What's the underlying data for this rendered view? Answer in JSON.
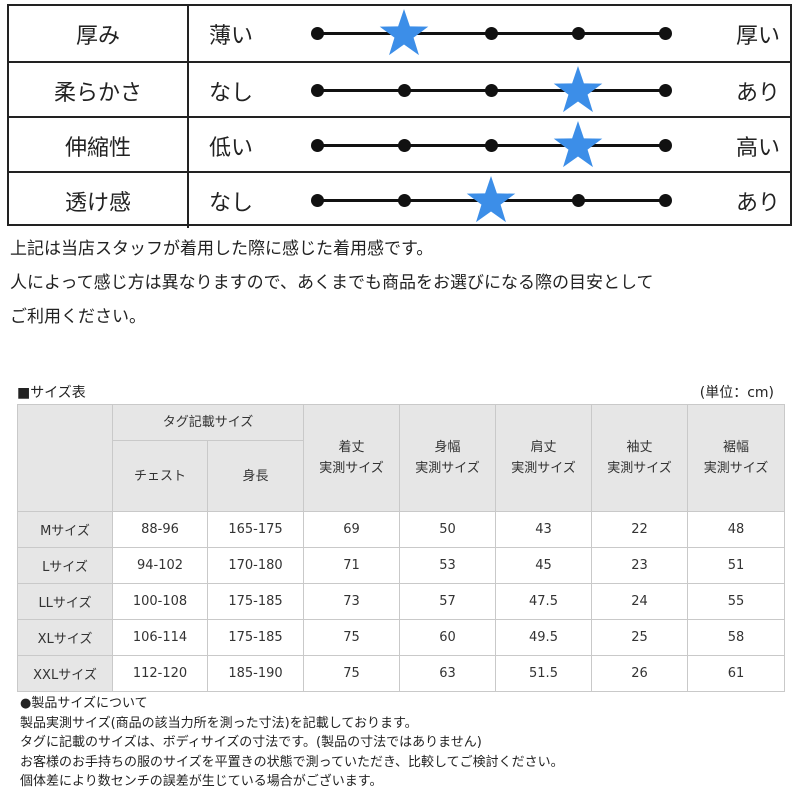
{
  "feel": [
    {
      "label": "厚み",
      "left": "薄い",
      "right": "厚い",
      "position": 2,
      "points": 5
    },
    {
      "label": "柔らかさ",
      "left": "なし",
      "right": "あり",
      "position": 4,
      "points": 5
    },
    {
      "label": "伸縮性",
      "left": "低い",
      "right": "高い",
      "position": 4,
      "points": 5
    },
    {
      "label": "透け感",
      "left": "なし",
      "right": "あり",
      "position": 3,
      "points": 5
    }
  ],
  "star_color": "#3c8ee8",
  "note": [
    "上記は当店スタッフが着用した際に感じた着用感です。",
    "人によって感じ方は異なりますので、あくまでも商品をお選びになる際の目安として",
    "ご利用ください。"
  ],
  "size_table": {
    "title": "■サイズ表",
    "unit": "(単位：cm)",
    "tag_group": "タグ記載サイズ",
    "tag_cols": [
      "チェスト",
      "身長"
    ],
    "measure_cols": [
      [
        "着丈",
        "実測サイズ"
      ],
      [
        "身幅",
        "実測サイズ"
      ],
      [
        "肩丈",
        "実測サイズ"
      ],
      [
        "袖丈",
        "実測サイズ"
      ],
      [
        "裾幅",
        "実測サイズ"
      ]
    ],
    "rows": [
      [
        "Mサイズ",
        "88-96",
        "165-175",
        "69",
        "50",
        "43",
        "22",
        "48"
      ],
      [
        "Lサイズ",
        "94-102",
        "170-180",
        "71",
        "53",
        "45",
        "23",
        "51"
      ],
      [
        "LLサイズ",
        "100-108",
        "175-185",
        "73",
        "57",
        "47.5",
        "24",
        "55"
      ],
      [
        "XLサイズ",
        "106-114",
        "175-185",
        "75",
        "60",
        "49.5",
        "25",
        "58"
      ],
      [
        "XXLサイズ",
        "112-120",
        "185-190",
        "75",
        "63",
        "51.5",
        "26",
        "61"
      ]
    ]
  },
  "footer": [
    "●製品サイズについて",
    "製品実測サイズ(商品の該当力所を測った寸法)を記載しております。",
    "タグに記載のサイズは、ボディサイズの寸法です。(製品の寸法ではありません)",
    "お客様のお手持ちの服のサイズを平置きの状態で測っていただき、比較してご検討ください。",
    "個体差により数センチの誤差が生じている場合がございます。"
  ]
}
